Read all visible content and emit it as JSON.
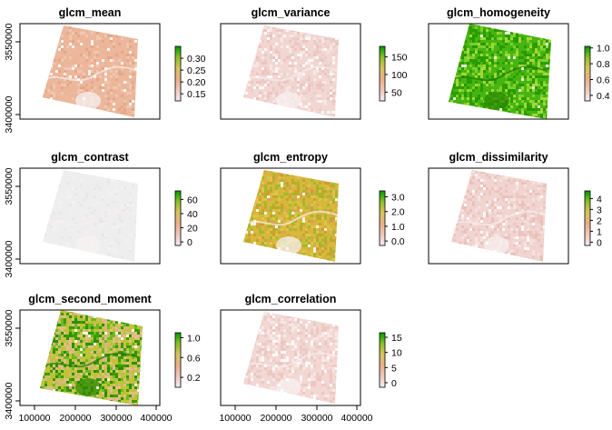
{
  "chart_data": [
    {
      "type": "heatmap",
      "title": "glcm_mean",
      "legend": {
        "ticks": [
          "0.30",
          "0.25",
          "0.20",
          "0.15"
        ],
        "range": [
          0.12,
          0.35
        ]
      },
      "colormap": [
        "#f2eeee",
        "#f0c8bc",
        "#e9b08a",
        "#d6c35c",
        "#8cbf2a",
        "#009a00"
      ],
      "yticks": [
        "3550000",
        "3400000"
      ],
      "xticks": []
    },
    {
      "type": "heatmap",
      "title": "glcm_variance",
      "legend": {
        "ticks": [
          "150",
          "100",
          "50"
        ],
        "range": [
          25,
          180
        ]
      },
      "colormap": [
        "#f2eeee",
        "#f0c8bc",
        "#e9b08a",
        "#d6c35c",
        "#8cbf2a",
        "#009a00"
      ],
      "yticks": [],
      "xticks": []
    },
    {
      "type": "heatmap",
      "title": "glcm_homogeneity",
      "legend": {
        "ticks": [
          "1.0",
          "0.8",
          "0.6",
          "0.4"
        ],
        "range": [
          0.33,
          1.02
        ]
      },
      "colormap": [
        "#f2eeee",
        "#f0c8bc",
        "#e9b08a",
        "#d6c35c",
        "#8cbf2a",
        "#009a00"
      ],
      "yticks": [],
      "xticks": []
    },
    {
      "type": "heatmap",
      "title": "glcm_contrast",
      "legend": {
        "ticks": [
          "60",
          "40",
          "20",
          "0"
        ],
        "range": [
          -5,
          72
        ]
      },
      "colormap": [
        "#f2eeee",
        "#f0c8bc",
        "#e9b08a",
        "#d6c35c",
        "#8cbf2a",
        "#009a00"
      ],
      "yticks": [
        "3550000",
        "3400000"
      ],
      "xticks": []
    },
    {
      "type": "heatmap",
      "title": "glcm_entropy",
      "legend": {
        "ticks": [
          "3.0",
          "2.0",
          "1.0",
          "0.0"
        ],
        "range": [
          -0.3,
          3.4
        ]
      },
      "colormap": [
        "#f2eeee",
        "#f0c8bc",
        "#e9b08a",
        "#d6c35c",
        "#8cbf2a",
        "#009a00"
      ],
      "yticks": [],
      "xticks": []
    },
    {
      "type": "heatmap",
      "title": "glcm_dissimilarity",
      "legend": {
        "ticks": [
          "4",
          "3",
          "2",
          "1",
          "0"
        ],
        "range": [
          -0.3,
          4.7
        ]
      },
      "colormap": [
        "#f2eeee",
        "#f0c8bc",
        "#e9b08a",
        "#d6c35c",
        "#8cbf2a",
        "#009a00"
      ],
      "yticks": [],
      "xticks": []
    },
    {
      "type": "heatmap",
      "title": "glcm_second_moment",
      "legend": {
        "ticks": [
          "1.0",
          "0.6",
          "0.2"
        ],
        "range": [
          0.0,
          1.1
        ]
      },
      "colormap": [
        "#f2eeee",
        "#f0c8bc",
        "#e9b08a",
        "#d6c35c",
        "#8cbf2a",
        "#009a00"
      ],
      "yticks": [
        "3550000",
        "3400000"
      ],
      "xticks": [
        "100000",
        "200000",
        "300000",
        "400000"
      ]
    },
    {
      "type": "heatmap",
      "title": "glcm_correlation",
      "legend": {
        "ticks": [
          "15",
          "10",
          "5",
          "0"
        ],
        "range": [
          -1.5,
          16.5
        ]
      },
      "colormap": [
        "#f2eeee",
        "#f0c8bc",
        "#e9b08a",
        "#d6c35c",
        "#8cbf2a",
        "#009a00"
      ],
      "yticks": [],
      "xticks": [
        "100000",
        "200000",
        "300000",
        "400000"
      ]
    }
  ]
}
